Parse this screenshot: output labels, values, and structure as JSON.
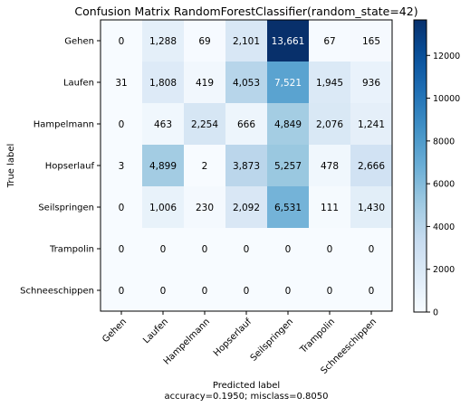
{
  "chart_data": {
    "type": "heatmap",
    "title": "Confusion Matrix RandomForestClassifier(random_state=42)",
    "xlabel": "Predicted label",
    "xlabel_sub": "accuracy=0.1950; misclass=0.8050",
    "ylabel": "True label",
    "x_categories": [
      "Gehen",
      "Laufen",
      "Hampelmann",
      "Hopserlauf",
      "Seilspringen",
      "Trampolin",
      "Schneeschippen"
    ],
    "y_categories": [
      "Gehen",
      "Laufen",
      "Hampelmann",
      "Hopserlauf",
      "Seilspringen",
      "Trampolin",
      "Schneeschippen"
    ],
    "values": [
      [
        0,
        1288,
        69,
        2101,
        13661,
        67,
        165
      ],
      [
        31,
        1808,
        419,
        4053,
        7521,
        1945,
        936
      ],
      [
        0,
        463,
        2254,
        666,
        4849,
        2076,
        1241
      ],
      [
        3,
        4899,
        2,
        3873,
        5257,
        478,
        2666
      ],
      [
        0,
        1006,
        230,
        2092,
        6531,
        111,
        1430
      ],
      [
        0,
        0,
        0,
        0,
        0,
        0,
        0
      ],
      [
        0,
        0,
        0,
        0,
        0,
        0,
        0
      ]
    ],
    "colorbar": {
      "colormap": "Blues",
      "range": [
        0,
        13661
      ],
      "ticks": [
        0,
        2000,
        4000,
        6000,
        8000,
        10000,
        12000
      ]
    },
    "x_tick_rotation_deg": 45,
    "grid": false
  }
}
